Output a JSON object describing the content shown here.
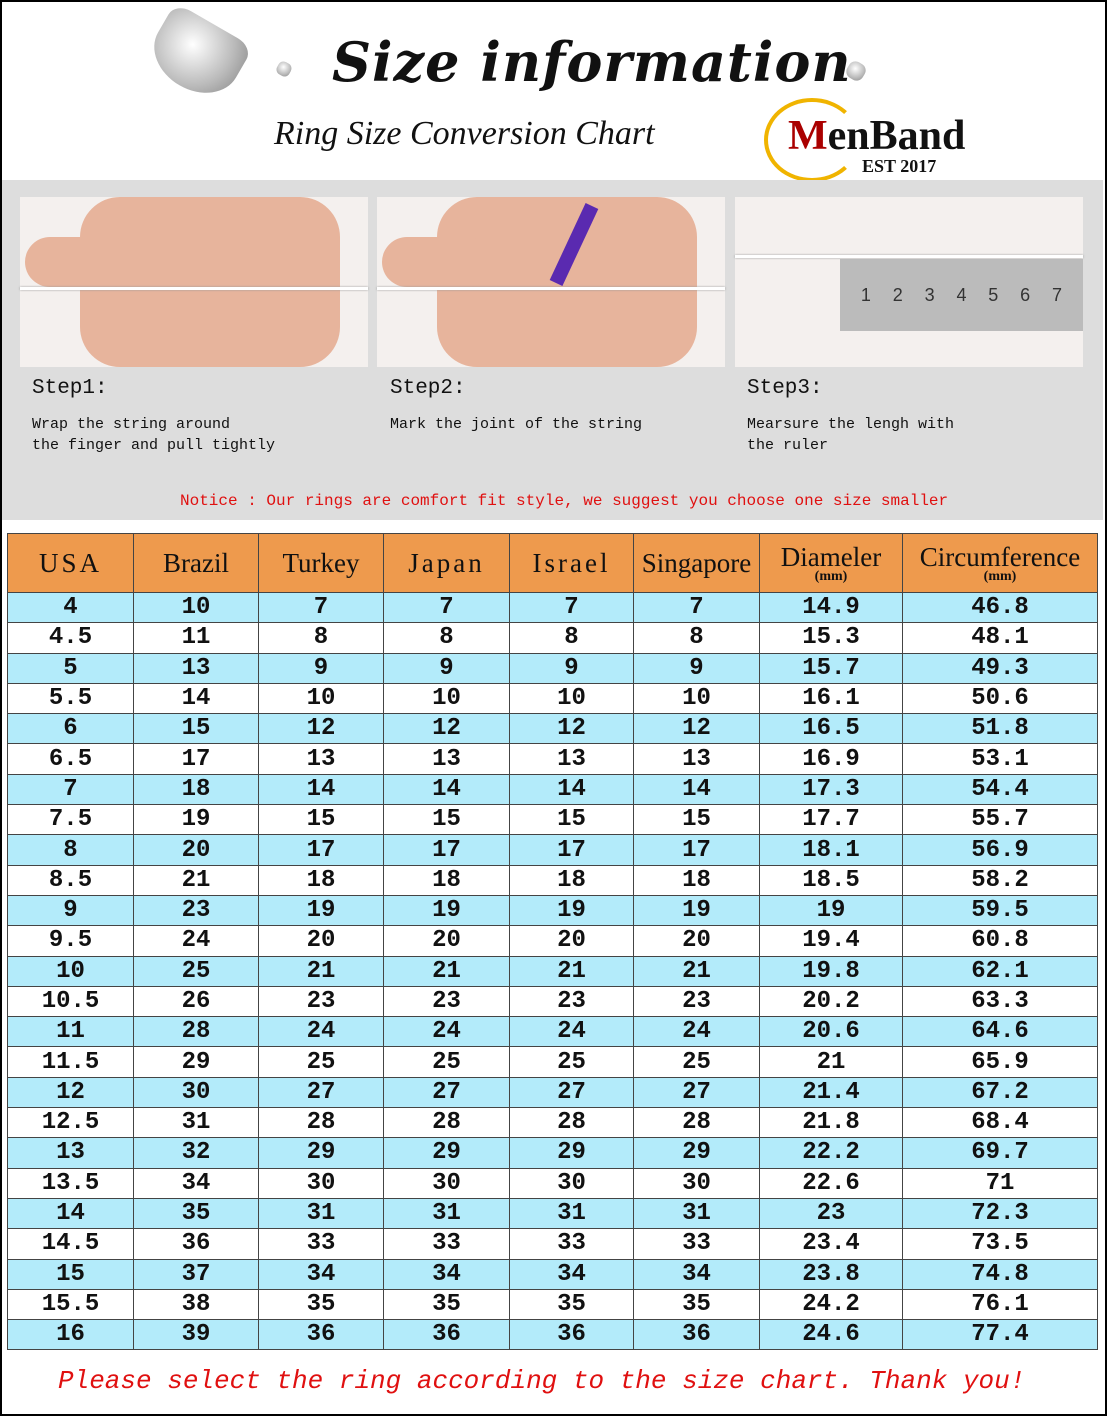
{
  "header": {
    "title": "Size information",
    "subtitle": "Ring Size Conversion Chart",
    "logo": {
      "brand_first": "M",
      "brand_rest": "enBand",
      "est": "EST 2017",
      "ring_color": "#f0b400",
      "accent": "#aa0000"
    }
  },
  "steps": [
    {
      "title": "Step1:",
      "text": "Wrap the string around\nthe finger and pull tightly"
    },
    {
      "title": "Step2:",
      "text": "Mark the joint of the string"
    },
    {
      "title": "Step3:",
      "text": "Mearsure the lengh with\nthe ruler"
    }
  ],
  "ruler_numbers": [
    "1",
    "2",
    "3",
    "4",
    "5",
    "6",
    "7"
  ],
  "notice": "Notice : Our rings are comfort fit style, we suggest you choose one size smaller",
  "table": {
    "columns": [
      {
        "label": "USA"
      },
      {
        "label": "Brazil"
      },
      {
        "label": "Turkey"
      },
      {
        "label": "Japan"
      },
      {
        "label": "Israel"
      },
      {
        "label": "Singapore"
      },
      {
        "label": "Diameler",
        "unit": "(mm)"
      },
      {
        "label": "Circumference",
        "unit": "(mm)"
      }
    ],
    "colors": {
      "header": "#ee9a4d",
      "row_alt": "#b3ebfa"
    },
    "rows": [
      [
        "4",
        "10",
        "7",
        "7",
        "7",
        "7",
        "14.9",
        "46.8"
      ],
      [
        "4.5",
        "11",
        "8",
        "8",
        "8",
        "8",
        "15.3",
        "48.1"
      ],
      [
        "5",
        "13",
        "9",
        "9",
        "9",
        "9",
        "15.7",
        "49.3"
      ],
      [
        "5.5",
        "14",
        "10",
        "10",
        "10",
        "10",
        "16.1",
        "50.6"
      ],
      [
        "6",
        "15",
        "12",
        "12",
        "12",
        "12",
        "16.5",
        "51.8"
      ],
      [
        "6.5",
        "17",
        "13",
        "13",
        "13",
        "13",
        "16.9",
        "53.1"
      ],
      [
        "7",
        "18",
        "14",
        "14",
        "14",
        "14",
        "17.3",
        "54.4"
      ],
      [
        "7.5",
        "19",
        "15",
        "15",
        "15",
        "15",
        "17.7",
        "55.7"
      ],
      [
        "8",
        "20",
        "17",
        "17",
        "17",
        "17",
        "18.1",
        "56.9"
      ],
      [
        "8.5",
        "21",
        "18",
        "18",
        "18",
        "18",
        "18.5",
        "58.2"
      ],
      [
        "9",
        "23",
        "19",
        "19",
        "19",
        "19",
        "19",
        "59.5"
      ],
      [
        "9.5",
        "24",
        "20",
        "20",
        "20",
        "20",
        "19.4",
        "60.8"
      ],
      [
        "10",
        "25",
        "21",
        "21",
        "21",
        "21",
        "19.8",
        "62.1"
      ],
      [
        "10.5",
        "26",
        "23",
        "23",
        "23",
        "23",
        "20.2",
        "63.3"
      ],
      [
        "11",
        "28",
        "24",
        "24",
        "24",
        "24",
        "20.6",
        "64.6"
      ],
      [
        "11.5",
        "29",
        "25",
        "25",
        "25",
        "25",
        "21",
        "65.9"
      ],
      [
        "12",
        "30",
        "27",
        "27",
        "27",
        "27",
        "21.4",
        "67.2"
      ],
      [
        "12.5",
        "31",
        "28",
        "28",
        "28",
        "28",
        "21.8",
        "68.4"
      ],
      [
        "13",
        "32",
        "29",
        "29",
        "29",
        "29",
        "22.2",
        "69.7"
      ],
      [
        "13.5",
        "34",
        "30",
        "30",
        "30",
        "30",
        "22.6",
        "71"
      ],
      [
        "14",
        "35",
        "31",
        "31",
        "31",
        "31",
        "23",
        "72.3"
      ],
      [
        "14.5",
        "36",
        "33",
        "33",
        "33",
        "33",
        "23.4",
        "73.5"
      ],
      [
        "15",
        "37",
        "34",
        "34",
        "34",
        "34",
        "23.8",
        "74.8"
      ],
      [
        "15.5",
        "38",
        "35",
        "35",
        "35",
        "35",
        "24.2",
        "76.1"
      ],
      [
        "16",
        "39",
        "36",
        "36",
        "36",
        "36",
        "24.6",
        "77.4"
      ]
    ]
  },
  "footer": "Please select the ring according to the size chart. Thank you!"
}
